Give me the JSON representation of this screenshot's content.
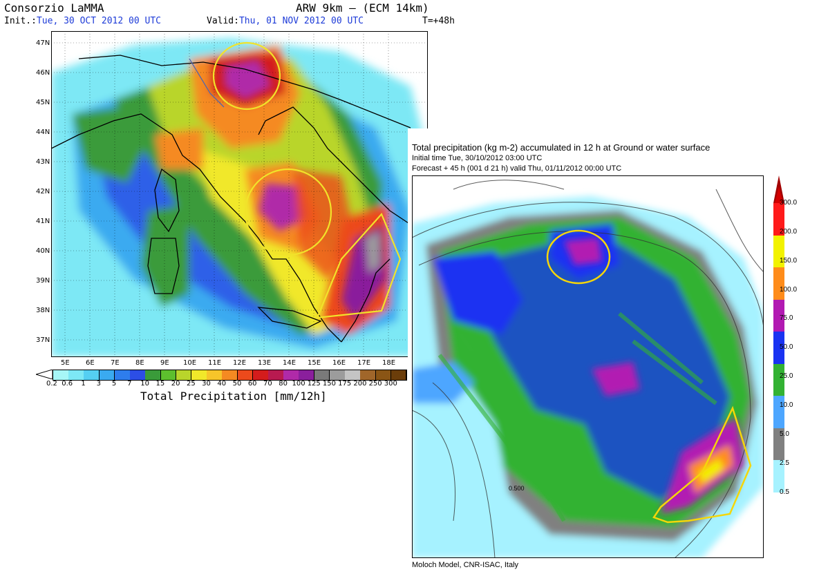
{
  "lamma": {
    "title": "Consorzio LaMMA",
    "model": "ARW 9km – (ECM 14km)",
    "init_label": "Init.:",
    "init_value": "Tue, 30 OCT 2012  00 UTC",
    "valid_label": "Valid:",
    "valid_value": "Thu, 01 NOV 2012  00 UTC",
    "lead": "T=+48h",
    "lat_labels": [
      "47N",
      "46N",
      "45N",
      "44N",
      "43N",
      "42N",
      "41N",
      "40N",
      "39N",
      "38N",
      "37N"
    ],
    "lon_labels": [
      "5E",
      "6E",
      "7E",
      "8E",
      "9E",
      "10E",
      "11E",
      "12E",
      "13E",
      "14E",
      "15E",
      "16E",
      "17E",
      "18E"
    ],
    "colorbar": {
      "labels": [
        "0.2",
        "0.6",
        "1",
        "3",
        "5",
        "7",
        "10",
        "15",
        "20",
        "25",
        "30",
        "40",
        "50",
        "60",
        "70",
        "80",
        "100",
        "125",
        "150",
        "175",
        "200",
        "250",
        "300"
      ],
      "colors": [
        "#a7f7f7",
        "#7de8f5",
        "#55cff2",
        "#3aaaf0",
        "#2e7ded",
        "#2c4ee6",
        "#3a9b3a",
        "#5dbf2e",
        "#b9d52b",
        "#f1e82a",
        "#f7c52a",
        "#f58a22",
        "#ec4a1c",
        "#d41c1c",
        "#b81a50",
        "#b02aa8",
        "#8a1f9c",
        "#7a7a7a",
        "#9c9c9c",
        "#c4c4c4",
        "#a0662a",
        "#8a5515",
        "#6b3d0a"
      ],
      "caption": "Total Precipitation [mm/12h]"
    }
  },
  "moloch": {
    "title": "Total precipitation (kg m-2) accumulated in  12 h at Ground or water surface",
    "initial_time": "Initial time  Tue, 30/10/2012  03:00 UTC",
    "forecast": "Forecast  +  45 h  (001 d 21 h)  valid Thu, 01/11/2012 00:00 UTC",
    "footer": "Moloch Model, CNR-ISAC, Italy",
    "colorbar": {
      "labels": [
        "300.0",
        "200.0",
        "150.0",
        "100.0",
        "75.0",
        "50.0",
        "25.0",
        "10.0",
        "5.0",
        "2.5",
        "0.5"
      ],
      "colors": [
        "#ff1a1a",
        "#f2f200",
        "#ff8c1a",
        "#b21ab2",
        "#1a33f2",
        "#33b233",
        "#4da6ff",
        "#808080",
        "#a6f2ff"
      ]
    },
    "contour_label": "0.500"
  }
}
